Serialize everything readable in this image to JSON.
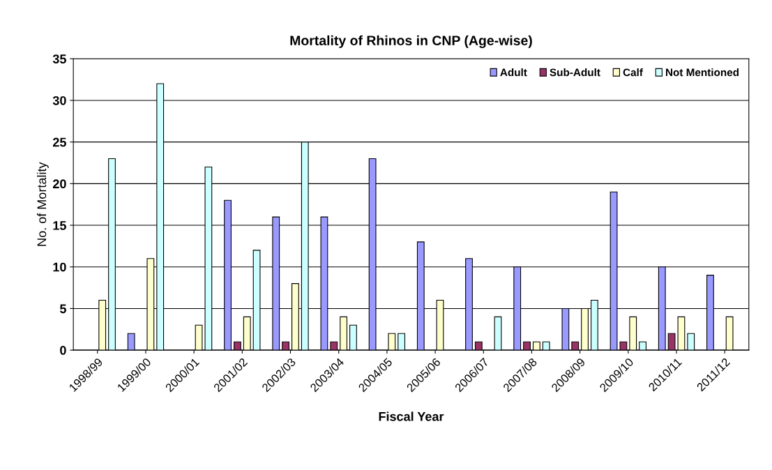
{
  "chart_data": {
    "type": "bar",
    "title": "Mortality of Rhinos in CNP (Age-wise)",
    "xlabel": "Fiscal Year",
    "ylabel": "No. of Mortality",
    "categories": [
      "1998/99",
      "1999/00",
      "2000/01",
      "2001/02",
      "2002/03",
      "2003/04",
      "2004/05",
      "2005/06",
      "2006/07",
      "2007/08",
      "2008/09",
      "2009/10",
      "2010/11",
      "2011/12"
    ],
    "series": [
      {
        "name": "Adult",
        "color": "#9999ff",
        "values": [
          0,
          2,
          0,
          18,
          16,
          16,
          23,
          13,
          11,
          10,
          5,
          19,
          10,
          9
        ]
      },
      {
        "name": "Sub-Adult",
        "color": "#993366",
        "values": [
          0,
          0,
          0,
          1,
          1,
          1,
          0,
          0,
          1,
          1,
          1,
          1,
          2,
          0
        ]
      },
      {
        "name": "Calf",
        "color": "#ffffcc",
        "values": [
          6,
          11,
          3,
          4,
          8,
          4,
          2,
          6,
          0,
          1,
          5,
          4,
          4,
          4
        ]
      },
      {
        "name": "Not Mentioned",
        "color": "#ccffff",
        "values": [
          23,
          32,
          22,
          12,
          25,
          3,
          2,
          0,
          4,
          1,
          6,
          1,
          2,
          0
        ]
      }
    ],
    "ylim": [
      0,
      35
    ],
    "yticks": [
      0,
      5,
      10,
      15,
      20,
      25,
      30,
      35
    ],
    "grid": "y",
    "legend": "top right"
  }
}
